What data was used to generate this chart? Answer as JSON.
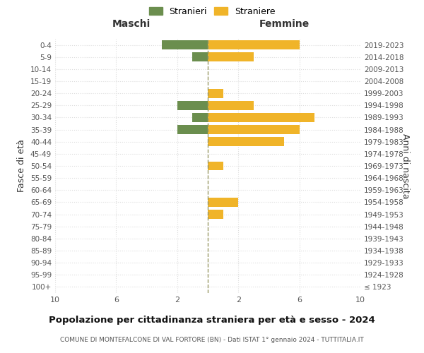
{
  "age_groups": [
    "100+",
    "95-99",
    "90-94",
    "85-89",
    "80-84",
    "75-79",
    "70-74",
    "65-69",
    "60-64",
    "55-59",
    "50-54",
    "45-49",
    "40-44",
    "35-39",
    "30-34",
    "25-29",
    "20-24",
    "15-19",
    "10-14",
    "5-9",
    "0-4"
  ],
  "birth_years": [
    "≤ 1923",
    "1924-1928",
    "1929-1933",
    "1934-1938",
    "1939-1943",
    "1944-1948",
    "1949-1953",
    "1954-1958",
    "1959-1963",
    "1964-1968",
    "1969-1973",
    "1974-1978",
    "1979-1983",
    "1984-1988",
    "1989-1993",
    "1994-1998",
    "1999-2003",
    "2004-2008",
    "2009-2013",
    "2014-2018",
    "2019-2023"
  ],
  "maschi": [
    0,
    0,
    0,
    0,
    0,
    0,
    0,
    0,
    0,
    0,
    0,
    0,
    0,
    2,
    1,
    2,
    0,
    0,
    0,
    1,
    3
  ],
  "femmine": [
    0,
    0,
    0,
    0,
    0,
    0,
    1,
    2,
    0,
    0,
    1,
    0,
    5,
    6,
    7,
    3,
    1,
    0,
    0,
    3,
    6
  ],
  "color_maschi": "#6b8e4e",
  "color_femmine": "#f0b429",
  "title": "Popolazione per cittadinanza straniera per età e sesso - 2024",
  "subtitle": "COMUNE DI MONTEFALCONE DI VAL FORTORE (BN) - Dati ISTAT 1° gennaio 2024 - TUTTITALIA.IT",
  "label_left": "Maschi",
  "label_right": "Femmine",
  "ylabel_left": "Fasce di età",
  "ylabel_right": "Anni di nascita",
  "legend_maschi": "Stranieri",
  "legend_femmine": "Straniere",
  "xlim": 10,
  "xticks": [
    -10,
    -6,
    -2,
    2,
    6,
    10
  ],
  "xtick_labels": [
    "10",
    "6",
    "2",
    "2",
    "6",
    "10"
  ],
  "bg_color": "#ffffff",
  "grid_color": "#dddddd",
  "center_line_color": "#999966",
  "bar_height": 0.75
}
